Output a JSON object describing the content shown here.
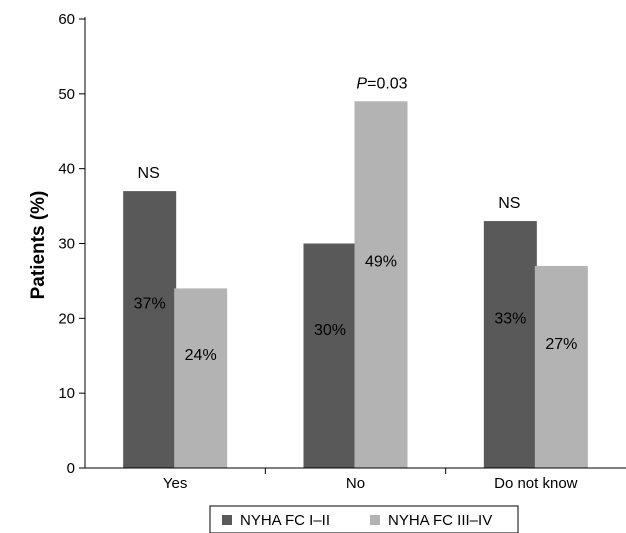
{
  "chart_data": {
    "type": "bar",
    "title": "",
    "xlabel": "",
    "ylabel": "Patients (%)",
    "ylim": [
      0,
      60
    ],
    "yticks": [
      0,
      10,
      20,
      30,
      40,
      50,
      60
    ],
    "grid": false,
    "legend_position": "bottom",
    "categories": [
      "Yes",
      "No",
      "Do not know"
    ],
    "series": [
      {
        "name": "NYHA FC I–II",
        "color": "#595959",
        "values": [
          37,
          30,
          33
        ],
        "labels": [
          "37%",
          "30%",
          "33%"
        ]
      },
      {
        "name": "NYHA FC III–IV",
        "color": "#b3b3b3",
        "values": [
          24,
          49,
          27
        ],
        "labels": [
          "24%",
          "49%",
          "27%"
        ]
      }
    ],
    "annotations": [
      {
        "category": "Yes",
        "text": "NS"
      },
      {
        "category": "No",
        "text_italic": "P",
        "text": "=0.03"
      },
      {
        "category": "Do not know",
        "text": "NS"
      }
    ]
  }
}
